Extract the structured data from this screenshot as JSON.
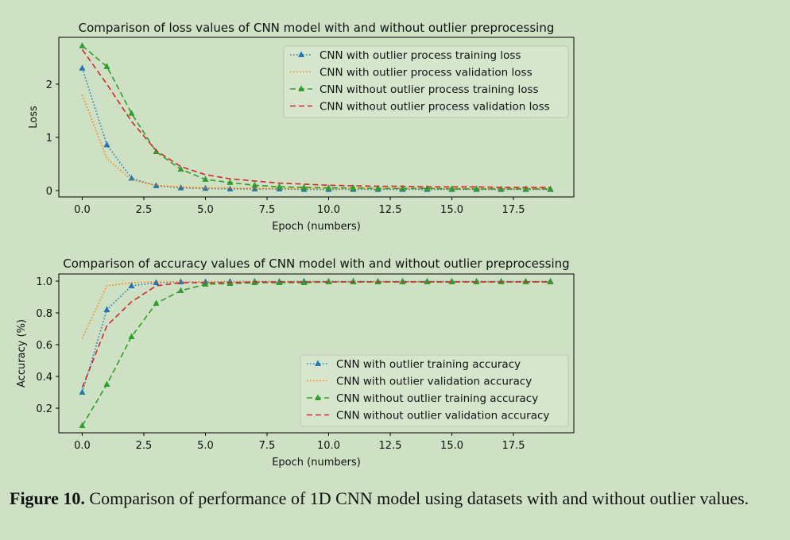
{
  "chart_data": [
    {
      "type": "line",
      "title": "Comparison of loss values of CNN model with and without outlier preprocessing",
      "xlabel": "Epoch (numbers)",
      "ylabel": "Loss",
      "xlim": [
        -0.95,
        19.95
      ],
      "ylim": [
        -0.12,
        2.88
      ],
      "xticks": [
        0.0,
        2.5,
        5.0,
        7.5,
        10.0,
        12.5,
        15.0,
        17.5
      ],
      "xtick_labels": [
        "0.0",
        "2.5",
        "5.0",
        "7.5",
        "10.0",
        "12.5",
        "15.0",
        "17.5"
      ],
      "yticks": [
        0,
        1,
        2
      ],
      "ytick_labels": [
        "0",
        "1",
        "2"
      ],
      "legend_position": "upper right",
      "x": [
        0,
        1,
        2,
        3,
        4,
        5,
        6,
        7,
        8,
        9,
        10,
        11,
        12,
        13,
        14,
        15,
        16,
        17,
        18,
        19
      ],
      "series": [
        {
          "name": "CNN with outlier process training loss",
          "color": "#1f77b4",
          "style": "dotted",
          "marker": "triangle",
          "values": [
            2.3,
            0.86,
            0.23,
            0.09,
            0.05,
            0.04,
            0.03,
            0.03,
            0.03,
            0.02,
            0.02,
            0.02,
            0.02,
            0.02,
            0.02,
            0.02,
            0.02,
            0.02,
            0.02,
            0.02
          ]
        },
        {
          "name": "CNN with outlier process validation loss",
          "color": "#ff7f0e",
          "style": "dotted",
          "marker": "none",
          "values": [
            1.8,
            0.6,
            0.2,
            0.1,
            0.07,
            0.05,
            0.05,
            0.04,
            0.04,
            0.04,
            0.04,
            0.04,
            0.04,
            0.04,
            0.04,
            0.04,
            0.04,
            0.04,
            0.04,
            0.04
          ]
        },
        {
          "name": "CNN without outlier process training loss",
          "color": "#2ca02c",
          "style": "dashed",
          "marker": "triangle",
          "values": [
            2.72,
            2.33,
            1.45,
            0.73,
            0.4,
            0.21,
            0.15,
            0.1,
            0.07,
            0.06,
            0.05,
            0.05,
            0.04,
            0.04,
            0.04,
            0.03,
            0.03,
            0.03,
            0.03,
            0.03
          ]
        },
        {
          "name": "CNN without outlier process validation loss",
          "color": "#d62728",
          "style": "dashed",
          "marker": "none",
          "values": [
            2.65,
            2.0,
            1.3,
            0.75,
            0.45,
            0.3,
            0.22,
            0.18,
            0.14,
            0.12,
            0.1,
            0.09,
            0.08,
            0.08,
            0.07,
            0.07,
            0.07,
            0.06,
            0.06,
            0.06
          ]
        }
      ]
    },
    {
      "type": "line",
      "title": "Comparison of accuracy values of CNN model with and without outlier preprocessing",
      "xlabel": "Epoch (numbers)",
      "ylabel": "Accuracy (%)",
      "xlim": [
        -0.95,
        19.95
      ],
      "ylim": [
        0.045,
        1.045
      ],
      "xticks": [
        0.0,
        2.5,
        5.0,
        7.5,
        10.0,
        12.5,
        15.0,
        17.5
      ],
      "xtick_labels": [
        "0.0",
        "2.5",
        "5.0",
        "7.5",
        "10.0",
        "12.5",
        "15.0",
        "17.5"
      ],
      "yticks": [
        0.2,
        0.4,
        0.6,
        0.8,
        1.0
      ],
      "ytick_labels": [
        "0.2",
        "0.4",
        "0.6",
        "0.8",
        "1.0"
      ],
      "legend_position": "lower right",
      "x": [
        0,
        1,
        2,
        3,
        4,
        5,
        6,
        7,
        8,
        9,
        10,
        11,
        12,
        13,
        14,
        15,
        16,
        17,
        18,
        19
      ],
      "series": [
        {
          "name": "CNN with outlier training accuracy",
          "color": "#1f77b4",
          "style": "dotted",
          "marker": "triangle",
          "values": [
            0.3,
            0.82,
            0.97,
            0.99,
            0.995,
            0.995,
            0.997,
            0.997,
            0.997,
            0.998,
            0.998,
            0.998,
            0.998,
            0.998,
            0.998,
            0.998,
            0.998,
            0.998,
            0.998,
            0.998
          ]
        },
        {
          "name": "CNN with outlier validation accuracy",
          "color": "#ff7f0e",
          "style": "dotted",
          "marker": "none",
          "values": [
            0.64,
            0.97,
            0.99,
            0.995,
            0.995,
            0.995,
            0.995,
            0.995,
            0.995,
            0.995,
            0.995,
            0.995,
            0.995,
            0.995,
            0.995,
            0.995,
            0.995,
            0.995,
            0.995,
            0.995
          ]
        },
        {
          "name": "CNN without outlier training accuracy",
          "color": "#2ca02c",
          "style": "dashed",
          "marker": "triangle",
          "values": [
            0.09,
            0.35,
            0.65,
            0.86,
            0.94,
            0.98,
            0.985,
            0.99,
            0.99,
            0.99,
            0.995,
            0.995,
            0.995,
            0.995,
            0.995,
            0.995,
            0.995,
            0.995,
            0.995,
            0.995
          ]
        },
        {
          "name": "CNN without outlier validation accuracy",
          "color": "#d62728",
          "style": "dashed",
          "marker": "none",
          "values": [
            0.33,
            0.72,
            0.87,
            0.97,
            0.99,
            0.99,
            0.99,
            0.995,
            0.995,
            0.995,
            0.995,
            0.995,
            0.995,
            0.995,
            0.995,
            0.995,
            0.995,
            0.995,
            0.995,
            0.995
          ]
        }
      ]
    }
  ],
  "caption": {
    "label": "Figure 10.",
    "text": " Comparison of performance of 1D CNN model using datasets with and without outlier values."
  }
}
